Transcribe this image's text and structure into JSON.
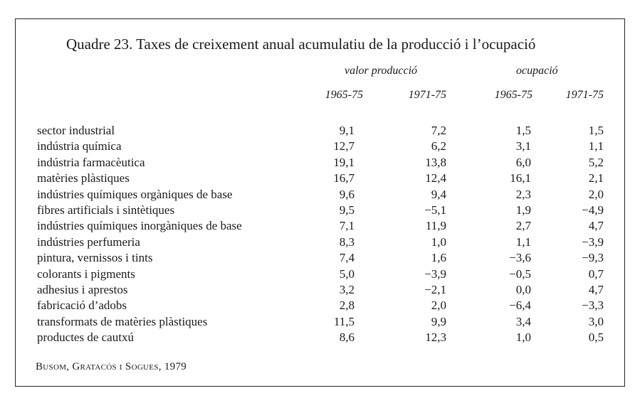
{
  "table": {
    "title": "Quadre 23. Taxes de creixement anual acumulatiu de la producció i l’ocupació",
    "groups": [
      "valor producció",
      "ocupació"
    ],
    "periods": [
      "1965-75",
      "1971-75",
      "1965-75",
      "1971-75"
    ],
    "rows": [
      {
        "label": "sector industrial",
        "values": [
          "9,1",
          "7,2",
          "1,5",
          "1,5"
        ]
      },
      {
        "label": "indústria química",
        "values": [
          "12,7",
          "6,2",
          "3,1",
          "1,1"
        ]
      },
      {
        "label": "indústria farmacèutica",
        "values": [
          "19,1",
          "13,8",
          "6,0",
          "5,2"
        ]
      },
      {
        "label": "matèries plàstiques",
        "values": [
          "16,7",
          "12,4",
          "16,1",
          "2,1"
        ]
      },
      {
        "label": "indústries químiques orgàniques de base",
        "values": [
          "9,6",
          "9,4",
          "2,3",
          "2,0"
        ]
      },
      {
        "label": "fibres artificials i sintètiques",
        "values": [
          "9,5",
          "−5,1",
          "1,9",
          "−4,9"
        ]
      },
      {
        "label": "indústries químiques inorgàniques de base",
        "values": [
          "7,1",
          "11,9",
          "2,7",
          "4,7"
        ]
      },
      {
        "label": "indústries perfumeria",
        "values": [
          "8,3",
          "1,0",
          "1,1",
          "−3,9"
        ]
      },
      {
        "label": "pintura, vernissos i tints",
        "values": [
          "7,4",
          "1,6",
          "−3,6",
          "−9,3"
        ]
      },
      {
        "label": "colorants i pigments",
        "values": [
          "5,0",
          "−3,9",
          "−0,5",
          "0,7"
        ]
      },
      {
        "label": "adhesius i aprestos",
        "values": [
          "3,2",
          "−2,1",
          "0,0",
          "4,7"
        ]
      },
      {
        "label": "fabricació d’adobs",
        "values": [
          "2,8",
          "2,0",
          "−6,4",
          "−3,3"
        ]
      },
      {
        "label": "transformats de matèries plàstiques",
        "values": [
          "11,5",
          "9,9",
          "3,4",
          "3,0"
        ]
      },
      {
        "label": "productes de cautxú",
        "values": [
          "8,6",
          "12,3",
          "1,0",
          "0,5"
        ]
      }
    ],
    "source": "Busom, Gratacós i Sogues, 1979"
  }
}
